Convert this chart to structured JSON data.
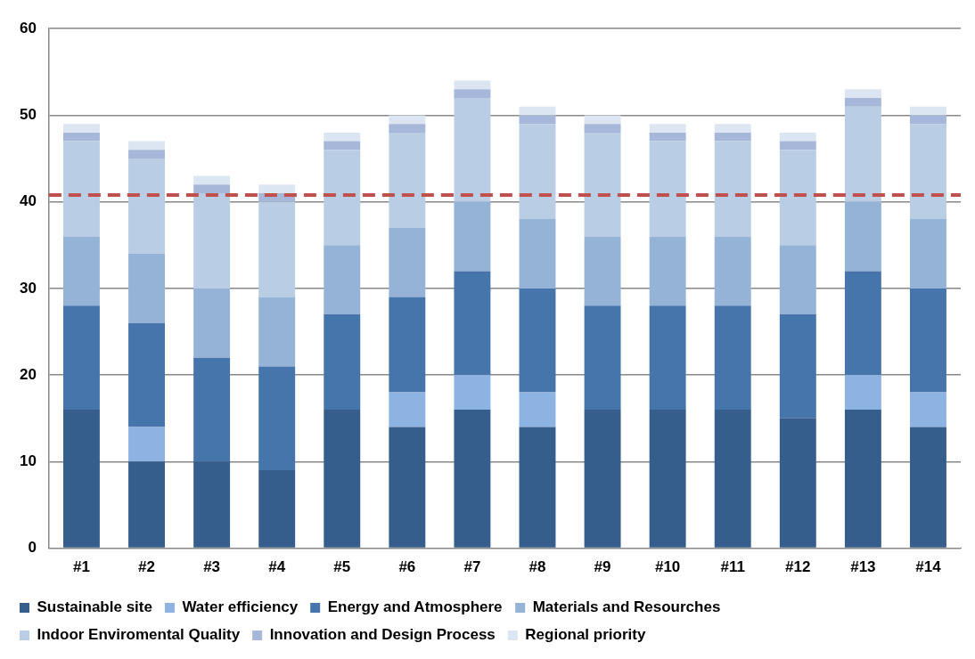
{
  "chart_data": {
    "type": "bar",
    "stacked": true,
    "categories": [
      "#1",
      "#2",
      "#3",
      "#4",
      "#5",
      "#6",
      "#7",
      "#8",
      "#9",
      "#10",
      "#11",
      "#12",
      "#13",
      "#14"
    ],
    "series": [
      {
        "name": "Sustainable site",
        "color": "#355e8c",
        "values": [
          16,
          10,
          10,
          9,
          16,
          14,
          16,
          14,
          16,
          16,
          16,
          15,
          16,
          14
        ]
      },
      {
        "name": "Water efficiency",
        "color": "#8db3e2",
        "values": [
          0,
          4,
          0,
          0,
          0,
          4,
          4,
          4,
          0,
          0,
          0,
          0,
          4,
          4
        ]
      },
      {
        "name": "Energy and Atmosphere",
        "color": "#4675ab",
        "values": [
          12,
          12,
          12,
          12,
          11,
          11,
          12,
          12,
          12,
          12,
          12,
          12,
          12,
          12
        ]
      },
      {
        "name": "Materials and Resourches",
        "color": "#95b3d7",
        "values": [
          8,
          8,
          8,
          8,
          8,
          8,
          8,
          8,
          8,
          8,
          8,
          8,
          8,
          8
        ]
      },
      {
        "name": "Indoor Enviromental Quality",
        "color": "#b9cde5",
        "values": [
          11,
          11,
          11,
          11,
          11,
          11,
          12,
          11,
          12,
          11,
          11,
          11,
          11,
          11
        ]
      },
      {
        "name": "Innovation and Design Process",
        "color": "#a6b7d9",
        "values": [
          1,
          1,
          1,
          1,
          1,
          1,
          1,
          1,
          1,
          1,
          1,
          1,
          1,
          1
        ]
      },
      {
        "name": "Regional priority",
        "color": "#dce6f2",
        "values": [
          1,
          1,
          1,
          1,
          1,
          1,
          1,
          1,
          1,
          1,
          1,
          1,
          1,
          1
        ]
      }
    ],
    "ylim": [
      0,
      60
    ],
    "yticks": [
      0,
      10,
      20,
      30,
      40,
      50,
      60
    ],
    "grid": "y",
    "legend": "bottom",
    "ref_lines": [
      {
        "axis": "y",
        "value": 40.8,
        "color": "#c0504d",
        "line_style": "dashed"
      }
    ]
  }
}
